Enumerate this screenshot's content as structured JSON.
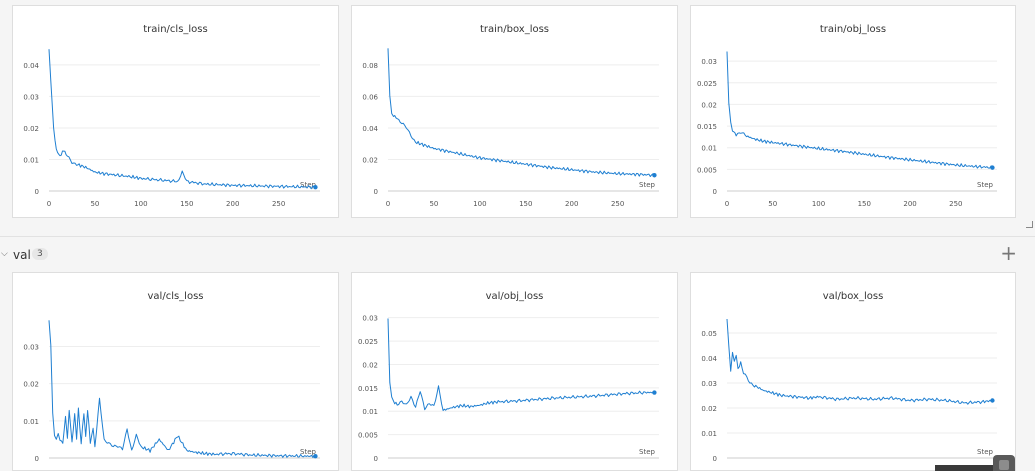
{
  "section": {
    "name": "val",
    "count": "3"
  },
  "colors": {
    "line": "#1f7fd1",
    "grid": "#eeeeee",
    "axis": "#cccccc",
    "tick": "#555555"
  },
  "chart_data": [
    {
      "type": "line",
      "title": "train/cls_loss",
      "xlabel": "Step",
      "ylabel": "",
      "xlim": [
        0,
        295
      ],
      "ylim": [
        0,
        0.046
      ],
      "xticks": [
        0,
        50,
        100,
        150,
        200,
        250
      ],
      "yticks": [
        0,
        0.01,
        0.02,
        0.03,
        0.04
      ],
      "ytick_labels": [
        "0",
        "0.01",
        "0.02",
        "0.03",
        "0.04"
      ],
      "series": [
        {
          "x": [
            0,
            2,
            5,
            8,
            12,
            16,
            20,
            25,
            30,
            40,
            50,
            60,
            75,
            90,
            100,
            120,
            140,
            145,
            150,
            170,
            200,
            230,
            260,
            290
          ],
          "y": [
            0.045,
            0.035,
            0.02,
            0.013,
            0.011,
            0.013,
            0.011,
            0.009,
            0.0085,
            0.0075,
            0.006,
            0.0055,
            0.005,
            0.0045,
            0.004,
            0.0035,
            0.003,
            0.006,
            0.003,
            0.0022,
            0.0018,
            0.0016,
            0.0014,
            0.0012
          ]
        }
      ]
    },
    {
      "type": "line",
      "title": "train/box_loss",
      "xlabel": "Step",
      "ylabel": "",
      "xlim": [
        0,
        295
      ],
      "ylim": [
        0,
        0.092
      ],
      "xticks": [
        0,
        50,
        100,
        150,
        200,
        250
      ],
      "yticks": [
        0,
        0.02,
        0.04,
        0.06,
        0.08
      ],
      "ytick_labels": [
        "0",
        "0.02",
        "0.04",
        "0.06",
        "0.08"
      ],
      "series": [
        {
          "x": [
            0,
            2,
            4,
            6,
            10,
            15,
            20,
            25,
            30,
            40,
            50,
            75,
            100,
            125,
            150,
            175,
            200,
            225,
            250,
            275,
            290
          ],
          "y": [
            0.09,
            0.06,
            0.05,
            0.048,
            0.046,
            0.043,
            0.04,
            0.035,
            0.031,
            0.029,
            0.027,
            0.024,
            0.021,
            0.019,
            0.017,
            0.015,
            0.0135,
            0.012,
            0.011,
            0.0105,
            0.01
          ]
        }
      ]
    },
    {
      "type": "line",
      "title": "train/obj_loss",
      "xlabel": "Step",
      "ylabel": "",
      "xlim": [
        0,
        295
      ],
      "ylim": [
        0,
        0.0335
      ],
      "xticks": [
        0,
        50,
        100,
        150,
        200,
        250
      ],
      "yticks": [
        0,
        0.005,
        0.01,
        0.015,
        0.02,
        0.025,
        0.03
      ],
      "ytick_labels": [
        "0",
        "0.005",
        "0.01",
        "0.015",
        "0.02",
        "0.025",
        "0.03"
      ],
      "series": [
        {
          "x": [
            0,
            2,
            4,
            6,
            10,
            15,
            20,
            30,
            40,
            50,
            75,
            100,
            125,
            150,
            175,
            200,
            225,
            250,
            275,
            290
          ],
          "y": [
            0.032,
            0.02,
            0.016,
            0.014,
            0.013,
            0.0135,
            0.0128,
            0.012,
            0.0115,
            0.0112,
            0.0105,
            0.0098,
            0.0092,
            0.0085,
            0.0078,
            0.0072,
            0.0066,
            0.006,
            0.0056,
            0.0054
          ]
        }
      ]
    },
    {
      "type": "line",
      "title": "val/cls_loss",
      "xlabel": "Step",
      "ylabel": "",
      "xlim": [
        0,
        295
      ],
      "ylim": [
        0,
        0.039
      ],
      "xticks": [],
      "yticks": [
        0,
        0.01,
        0.02,
        0.03
      ],
      "ytick_labels": [
        "0",
        "0.01",
        "0.02",
        "0.03"
      ],
      "series": [
        {
          "x": [
            0,
            2,
            4,
            6,
            8,
            10,
            12,
            15,
            18,
            20,
            22,
            25,
            28,
            30,
            32,
            35,
            38,
            40,
            42,
            45,
            48,
            50,
            55,
            60,
            65,
            70,
            75,
            80,
            85,
            90,
            95,
            100,
            110,
            120,
            130,
            140,
            150,
            160,
            170,
            180,
            200,
            220,
            250,
            280,
            290
          ],
          "y": [
            0.037,
            0.03,
            0.012,
            0.006,
            0.005,
            0.007,
            0.005,
            0.004,
            0.011,
            0.005,
            0.013,
            0.004,
            0.012,
            0.005,
            0.013,
            0.004,
            0.012,
            0.006,
            0.013,
            0.004,
            0.008,
            0.003,
            0.016,
            0.005,
            0.004,
            0.003,
            0.003,
            0.0025,
            0.008,
            0.002,
            0.006,
            0.003,
            0.002,
            0.005,
            0.002,
            0.006,
            0.002,
            0.0015,
            0.0012,
            0.001,
            0.0012,
            0.0008,
            0.0006,
            0.0005,
            0.0005
          ]
        }
      ]
    },
    {
      "type": "line",
      "title": "val/obj_loss",
      "xlabel": "Step",
      "ylabel": "",
      "xlim": [
        0,
        295
      ],
      "ylim": [
        0,
        0.031
      ],
      "xticks": [],
      "yticks": [
        0,
        0.005,
        0.01,
        0.015,
        0.02,
        0.025,
        0.03
      ],
      "ytick_labels": [
        "0",
        "0.005",
        "0.01",
        "0.015",
        "0.02",
        "0.025",
        "0.03"
      ],
      "series": [
        {
          "x": [
            0,
            2,
            4,
            6,
            10,
            15,
            20,
            25,
            30,
            35,
            40,
            45,
            50,
            55,
            60,
            70,
            80,
            90,
            100,
            110,
            120,
            140,
            160,
            180,
            200,
            220,
            240,
            260,
            280,
            290
          ],
          "y": [
            0.03,
            0.016,
            0.013,
            0.012,
            0.0115,
            0.012,
            0.0112,
            0.013,
            0.011,
            0.0145,
            0.0105,
            0.0115,
            0.011,
            0.0153,
            0.0102,
            0.0108,
            0.0112,
            0.011,
            0.0113,
            0.0118,
            0.012,
            0.0122,
            0.0125,
            0.0128,
            0.013,
            0.0132,
            0.0135,
            0.0138,
            0.014,
            0.014
          ]
        }
      ]
    },
    {
      "type": "line",
      "title": "val/box_loss",
      "xlabel": "Step",
      "ylabel": "",
      "xlim": [
        0,
        295
      ],
      "ylim": [
        0,
        0.058
      ],
      "xticks": [],
      "yticks": [
        0,
        0.01,
        0.02,
        0.03,
        0.04,
        0.05
      ],
      "ytick_labels": [
        "0",
        "0.01",
        "0.02",
        "0.03",
        "0.04",
        "0.05"
      ],
      "series": [
        {
          "x": [
            0,
            2,
            4,
            6,
            8,
            10,
            12,
            15,
            18,
            20,
            25,
            30,
            40,
            50,
            60,
            75,
            90,
            100,
            120,
            140,
            160,
            180,
            200,
            220,
            240,
            260,
            280,
            290
          ],
          "y": [
            0.056,
            0.045,
            0.035,
            0.042,
            0.038,
            0.041,
            0.036,
            0.038,
            0.034,
            0.033,
            0.03,
            0.029,
            0.027,
            0.026,
            0.025,
            0.0245,
            0.024,
            0.0245,
            0.0235,
            0.024,
            0.0235,
            0.024,
            0.023,
            0.0235,
            0.023,
            0.022,
            0.0225,
            0.023
          ]
        }
      ]
    }
  ]
}
